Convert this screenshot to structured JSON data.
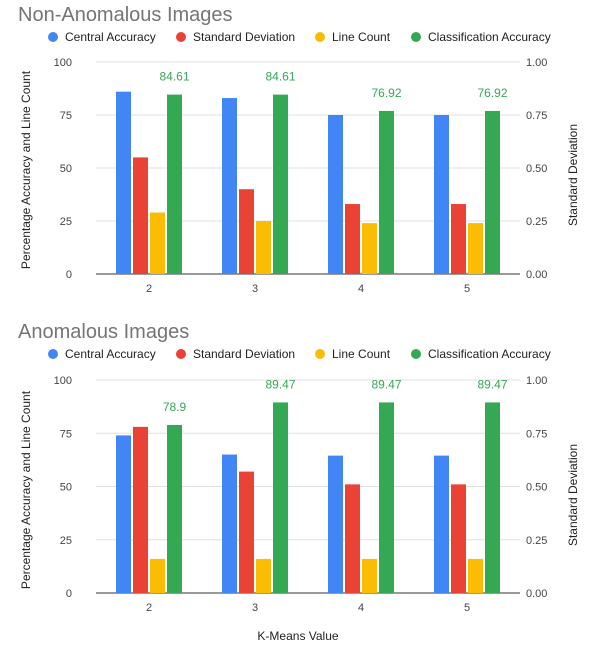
{
  "chart_data": [
    {
      "type": "bar",
      "title": "Non-Anomalous Images",
      "categories": [
        "2",
        "3",
        "4",
        "5"
      ],
      "series": [
        {
          "name": "Central Accuracy",
          "color": "#4285F4",
          "values": [
            86,
            83,
            75,
            75
          ]
        },
        {
          "name": "Standard Deviation",
          "color": "#EA4335",
          "axis": "right",
          "values": [
            0.55,
            0.4,
            0.33,
            0.33
          ]
        },
        {
          "name": "Line Count",
          "color": "#FBBC04",
          "values": [
            29,
            25,
            24,
            24
          ]
        },
        {
          "name": "Classification Accuracy",
          "color": "#34A853",
          "values": [
            84.61,
            84.61,
            76.92,
            76.92
          ],
          "data_labels": [
            "84.61",
            "84.61",
            "76.92",
            "76.92"
          ]
        }
      ],
      "ylabel": "Percentage Accuracy and Line Count",
      "y2label": "Standard Deviation",
      "ylim": [
        0,
        100
      ],
      "y2lim": [
        0,
        1
      ],
      "yticks": [
        "0",
        "25",
        "50",
        "75",
        "100"
      ],
      "y2ticks": [
        "0.00",
        "0.25",
        "0.50",
        "0.75",
        "1.00"
      ],
      "legend": "top",
      "grid": true
    },
    {
      "type": "bar",
      "title": "Anomalous Images",
      "categories": [
        "2",
        "3",
        "4",
        "5"
      ],
      "series": [
        {
          "name": "Central Accuracy",
          "color": "#4285F4",
          "values": [
            74,
            65,
            64.5,
            64.5
          ]
        },
        {
          "name": "Standard Deviation",
          "color": "#EA4335",
          "axis": "right",
          "values": [
            0.78,
            0.57,
            0.51,
            0.51
          ]
        },
        {
          "name": "Line Count",
          "color": "#FBBC04",
          "values": [
            16,
            16,
            16,
            16
          ]
        },
        {
          "name": "Classification Accuracy",
          "color": "#34A853",
          "values": [
            78.9,
            89.47,
            89.47,
            89.47
          ],
          "data_labels": [
            "78.9",
            "89.47",
            "89.47",
            "89.47"
          ]
        }
      ],
      "ylabel": "Percentage Accuracy and Line Count",
      "y2label": "Standard Deviation",
      "xlabel": "K-Means Value",
      "ylim": [
        0,
        100
      ],
      "y2lim": [
        0,
        1
      ],
      "yticks": [
        "0",
        "25",
        "50",
        "75",
        "100"
      ],
      "y2ticks": [
        "0.00",
        "0.25",
        "0.50",
        "0.75",
        "1.00"
      ],
      "legend": "top",
      "grid": true
    }
  ]
}
